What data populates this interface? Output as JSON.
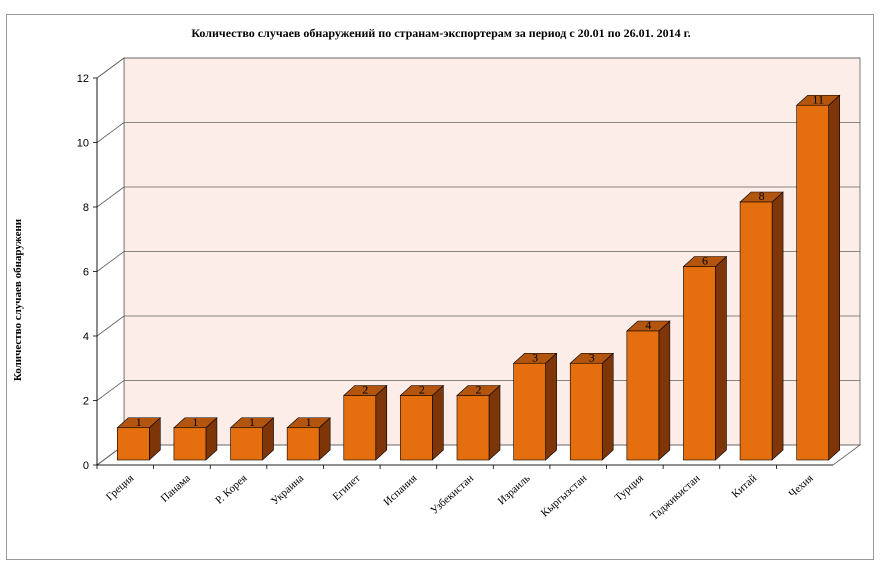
{
  "chart_data": {
    "type": "bar",
    "title": "Количество случаев обнаружений по странам-экспортерам за период с 20.01 по 26.01. 2014 г.",
    "ylabel": "Количество случаев обнаружени",
    "xlabel": "",
    "ylim": [
      0,
      12
    ],
    "yticks": [
      0,
      2,
      4,
      6,
      8,
      10,
      12
    ],
    "categories": [
      "Греция",
      "Панама",
      "Р. Корея",
      "Украина",
      "Египет",
      "Испания",
      "Узбекистан",
      "Израиль",
      "Кыргызстан",
      "Турция",
      "Таджикистан",
      "Китай",
      "Чехия"
    ],
    "values": [
      1,
      1,
      1,
      1,
      2,
      2,
      2,
      3,
      3,
      4,
      6,
      8,
      11
    ],
    "grid": true,
    "legend": "none",
    "colors": {
      "bar_front": "#E56F0F",
      "bar_side": "#7E3609",
      "bar_top": "#B3550E",
      "wall": "#FCEDE8",
      "gridline": "#606060"
    }
  }
}
